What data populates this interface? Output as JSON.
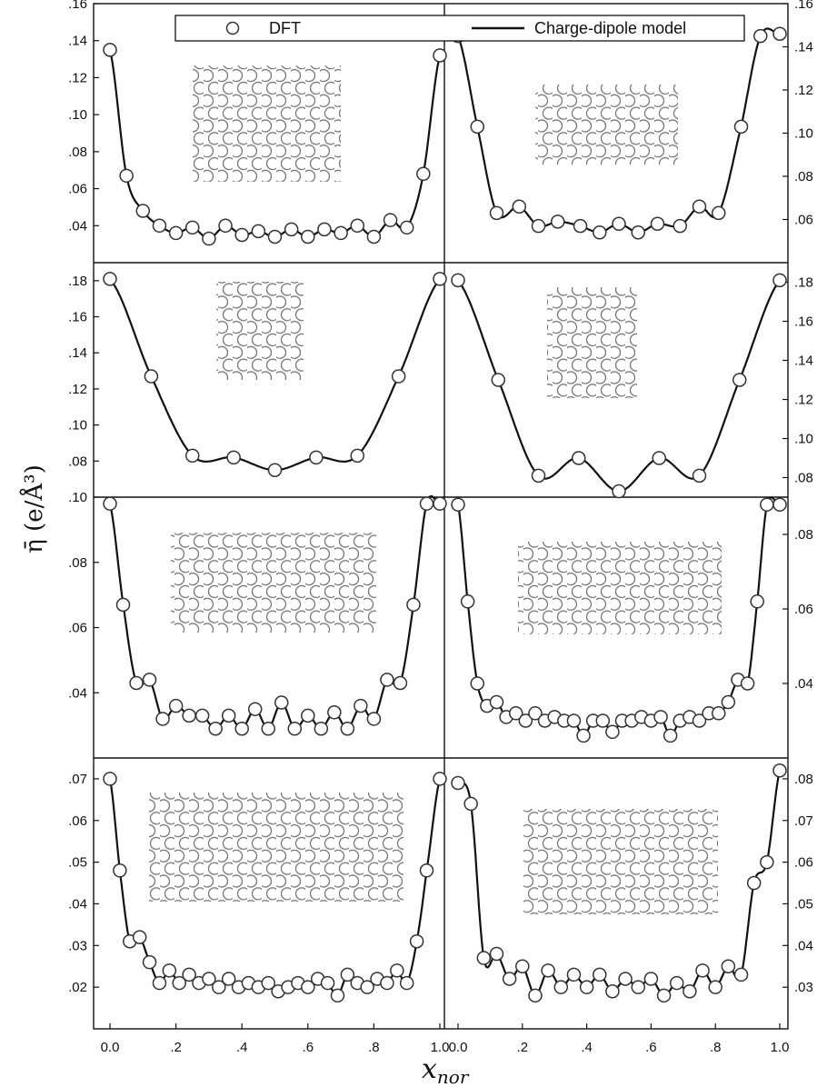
{
  "legend": {
    "dft_label": "DFT",
    "model_label": "Charge-dipole model"
  },
  "axis": {
    "ylabel": "η̄ (e/Å³)",
    "xlabel_main": "x",
    "xlabel_sub": "nor"
  },
  "colors": {
    "line": "#111111",
    "marker_stroke": "#333333",
    "lattice": "#777777"
  },
  "chart_data": [
    {
      "type": "scatter",
      "panel": "row1-left",
      "x_ticks": [
        "0.0",
        ".2",
        ".4",
        ".6",
        ".8",
        "1.0"
      ],
      "y_axis": "left",
      "ylim": [
        0.02,
        0.16
      ],
      "yticks": [
        0.04,
        0.06,
        0.08,
        0.1,
        0.12,
        0.14,
        0.16
      ],
      "ytick_labels": [
        ".04",
        ".06",
        ".08",
        ".10",
        ".12",
        ".14",
        ".16"
      ],
      "series": [
        {
          "name": "DFT",
          "x": [
            0.0,
            0.05,
            0.1,
            0.15,
            0.2,
            0.25,
            0.3,
            0.35,
            0.4,
            0.45,
            0.5,
            0.55,
            0.6,
            0.65,
            0.7,
            0.75,
            0.8,
            0.85,
            0.9,
            0.95,
            1.0
          ],
          "y": [
            0.135,
            0.067,
            0.048,
            0.04,
            0.036,
            0.039,
            0.033,
            0.04,
            0.035,
            0.037,
            0.034,
            0.038,
            0.034,
            0.038,
            0.036,
            0.04,
            0.034,
            0.043,
            0.039,
            0.068,
            0.132
          ]
        }
      ]
    },
    {
      "type": "scatter",
      "panel": "row1-right",
      "y_axis": "right",
      "ylim": [
        0.04,
        0.16
      ],
      "yticks": [
        0.06,
        0.08,
        0.1,
        0.12,
        0.14,
        0.16
      ],
      "ytick_labels": [
        ".06",
        ".08",
        ".10",
        ".12",
        ".14",
        ".16"
      ],
      "series": [
        {
          "name": "DFT",
          "x": [
            0.0,
            0.06,
            0.12,
            0.19,
            0.25,
            0.31,
            0.38,
            0.44,
            0.5,
            0.56,
            0.62,
            0.69,
            0.75,
            0.81,
            0.88,
            0.94,
            1.0
          ],
          "y": [
            0.145,
            0.103,
            0.063,
            0.066,
            0.057,
            0.059,
            0.057,
            0.054,
            0.058,
            0.054,
            0.058,
            0.057,
            0.066,
            0.063,
            0.103,
            0.145,
            0.146
          ]
        }
      ]
    },
    {
      "type": "scatter",
      "panel": "row2-left",
      "y_axis": "left",
      "ylim": [
        0.06,
        0.19
      ],
      "yticks": [
        0.08,
        0.1,
        0.12,
        0.14,
        0.16,
        0.18
      ],
      "ytick_labels": [
        ".08",
        ".10",
        ".12",
        ".14",
        ".16",
        ".18"
      ],
      "series": [
        {
          "name": "DFT",
          "x": [
            0.0,
            0.125,
            0.25,
            0.375,
            0.5,
            0.625,
            0.75,
            0.875,
            1.0
          ],
          "y": [
            0.181,
            0.127,
            0.083,
            0.082,
            0.075,
            0.082,
            0.083,
            0.127,
            0.181
          ]
        }
      ]
    },
    {
      "type": "scatter",
      "panel": "row2-right",
      "y_axis": "right",
      "ylim": [
        0.07,
        0.19
      ],
      "yticks": [
        0.08,
        0.1,
        0.12,
        0.14,
        0.16,
        0.18
      ],
      "ytick_labels": [
        ".08",
        ".10",
        ".12",
        ".14",
        ".16",
        ".18"
      ],
      "series": [
        {
          "name": "DFT",
          "x": [
            0.0,
            0.125,
            0.25,
            0.375,
            0.5,
            0.625,
            0.75,
            0.875,
            1.0
          ],
          "y": [
            0.181,
            0.13,
            0.081,
            0.09,
            0.073,
            0.09,
            0.081,
            0.13,
            0.181
          ]
        }
      ]
    },
    {
      "type": "scatter",
      "panel": "row3-left",
      "y_axis": "left",
      "ylim": [
        0.02,
        0.1
      ],
      "yticks": [
        0.04,
        0.06,
        0.08,
        0.1
      ],
      "ytick_labels": [
        ".04",
        ".06",
        ".08",
        ".10"
      ],
      "series": [
        {
          "name": "DFT",
          "x": [
            0.0,
            0.04,
            0.08,
            0.12,
            0.16,
            0.2,
            0.24,
            0.28,
            0.32,
            0.36,
            0.4,
            0.44,
            0.48,
            0.52,
            0.56,
            0.6,
            0.64,
            0.68,
            0.72,
            0.76,
            0.8,
            0.84,
            0.88,
            0.92,
            0.96,
            1.0
          ],
          "y": [
            0.098,
            0.067,
            0.043,
            0.044,
            0.032,
            0.036,
            0.033,
            0.033,
            0.029,
            0.033,
            0.029,
            0.035,
            0.029,
            0.037,
            0.029,
            0.033,
            0.029,
            0.034,
            0.029,
            0.036,
            0.032,
            0.044,
            0.043,
            0.067,
            0.098,
            0.098
          ]
        }
      ]
    },
    {
      "type": "scatter",
      "panel": "row3-right",
      "y_axis": "right",
      "ylim": [
        0.02,
        0.09
      ],
      "yticks": [
        0.04,
        0.06,
        0.08
      ],
      "ytick_labels": [
        ".04",
        ".06",
        ".08"
      ],
      "series": [
        {
          "name": "DFT",
          "x": [
            0.0,
            0.03,
            0.06,
            0.09,
            0.12,
            0.15,
            0.18,
            0.21,
            0.24,
            0.27,
            0.3,
            0.33,
            0.36,
            0.39,
            0.42,
            0.45,
            0.48,
            0.51,
            0.54,
            0.57,
            0.6,
            0.63,
            0.66,
            0.69,
            0.72,
            0.75,
            0.78,
            0.81,
            0.84,
            0.87,
            0.9,
            0.93,
            0.96,
            1.0
          ],
          "y": [
            0.088,
            0.062,
            0.04,
            0.034,
            0.035,
            0.031,
            0.032,
            0.03,
            0.032,
            0.03,
            0.031,
            0.03,
            0.03,
            0.026,
            0.03,
            0.03,
            0.027,
            0.03,
            0.03,
            0.031,
            0.03,
            0.031,
            0.026,
            0.03,
            0.031,
            0.03,
            0.032,
            0.032,
            0.035,
            0.041,
            0.04,
            0.062,
            0.088,
            0.088
          ]
        }
      ]
    },
    {
      "type": "scatter",
      "panel": "row4-left",
      "y_axis": "left",
      "ylim": [
        0.01,
        0.075
      ],
      "yticks": [
        0.02,
        0.03,
        0.04,
        0.05,
        0.06,
        0.07
      ],
      "ytick_labels": [
        ".02",
        ".03",
        ".04",
        ".05",
        ".06",
        ".07"
      ],
      "series": [
        {
          "name": "DFT",
          "x": [
            0.0,
            0.03,
            0.06,
            0.09,
            0.12,
            0.15,
            0.18,
            0.21,
            0.24,
            0.27,
            0.3,
            0.33,
            0.36,
            0.39,
            0.42,
            0.45,
            0.48,
            0.51,
            0.54,
            0.57,
            0.6,
            0.63,
            0.66,
            0.69,
            0.72,
            0.75,
            0.78,
            0.81,
            0.84,
            0.87,
            0.9,
            0.93,
            0.96,
            1.0
          ],
          "y": [
            0.07,
            0.048,
            0.031,
            0.032,
            0.026,
            0.021,
            0.024,
            0.021,
            0.023,
            0.021,
            0.022,
            0.02,
            0.022,
            0.02,
            0.021,
            0.02,
            0.021,
            0.019,
            0.02,
            0.021,
            0.02,
            0.022,
            0.021,
            0.018,
            0.023,
            0.021,
            0.02,
            0.022,
            0.021,
            0.024,
            0.021,
            0.031,
            0.048,
            0.07
          ]
        }
      ]
    },
    {
      "type": "scatter",
      "panel": "row4-right",
      "y_axis": "right",
      "ylim": [
        0.02,
        0.085
      ],
      "yticks": [
        0.03,
        0.04,
        0.05,
        0.06,
        0.07,
        0.08
      ],
      "ytick_labels": [
        ".03",
        ".04",
        ".05",
        ".06",
        ".07",
        ".08"
      ],
      "series": [
        {
          "name": "DFT",
          "x": [
            0.0,
            0.04,
            0.08,
            0.12,
            0.16,
            0.2,
            0.24,
            0.28,
            0.32,
            0.36,
            0.4,
            0.44,
            0.48,
            0.52,
            0.56,
            0.6,
            0.64,
            0.68,
            0.72,
            0.76,
            0.8,
            0.84,
            0.88,
            0.92,
            0.96,
            1.0
          ],
          "y": [
            0.079,
            0.074,
            0.037,
            0.038,
            0.032,
            0.035,
            0.028,
            0.034,
            0.03,
            0.033,
            0.03,
            0.033,
            0.029,
            0.032,
            0.03,
            0.032,
            0.028,
            0.031,
            0.029,
            0.034,
            0.03,
            0.035,
            0.033,
            0.055,
            0.06,
            0.082
          ]
        }
      ]
    }
  ]
}
